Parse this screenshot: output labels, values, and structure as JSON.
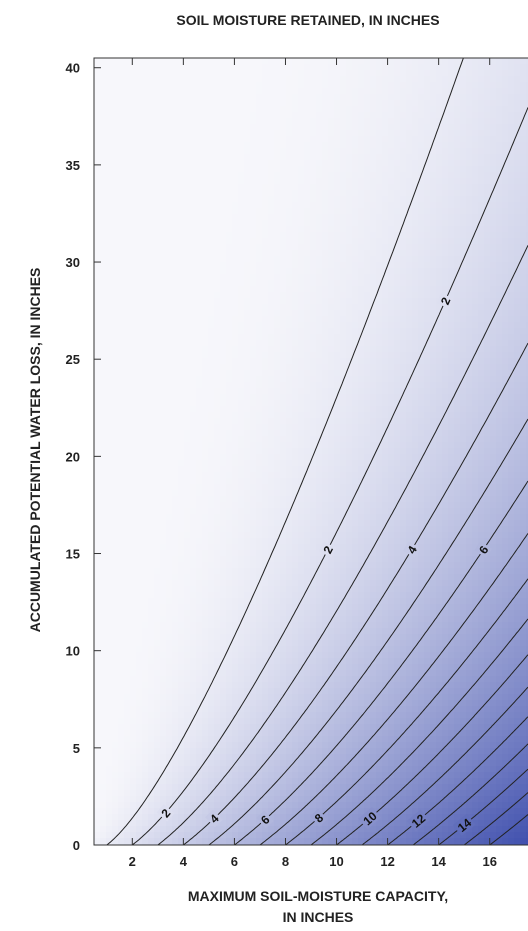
{
  "chart_data": {
    "type": "contour",
    "title": "SOIL MOISTURE RETAINED, IN INCHES",
    "xlabel_lines": [
      "MAXIMUM SOIL-MOISTURE CAPACITY,",
      "IN INCHES"
    ],
    "ylabel": "ACCUMULATED POTENTIAL WATER LOSS, IN INCHES",
    "xlim": [
      0.5,
      17.5
    ],
    "ylim": [
      0,
      40.5
    ],
    "x_ticks": [
      2,
      4,
      6,
      8,
      10,
      12,
      14,
      16
    ],
    "y_ticks": [
      0,
      5,
      10,
      15,
      20,
      25,
      30,
      35,
      40
    ],
    "model": "retained = capacity * exp(-loss / capacity)",
    "contour_levels": [
      1,
      2,
      3,
      4,
      5,
      6,
      7,
      8,
      9,
      10,
      11,
      12,
      13,
      14,
      15,
      16
    ],
    "labeled_levels": [
      {
        "level": 2,
        "text": "2",
        "at_x": 3.3
      },
      {
        "level": 4,
        "text": "4",
        "at_x": 5.2
      },
      {
        "level": 6,
        "text": "6",
        "at_x": 7.2
      },
      {
        "level": 8,
        "text": "8",
        "at_x": 9.3
      },
      {
        "level": 10,
        "text": "10",
        "at_x": 11.3
      },
      {
        "level": 12,
        "text": "12",
        "at_x": 13.2
      },
      {
        "level": 14,
        "text": "14",
        "at_x": 15.0
      },
      {
        "level": 2,
        "text": "2",
        "at_y": 15.2
      },
      {
        "level": 4,
        "text": "4",
        "at_y": 15.2
      },
      {
        "level": 6,
        "text": "6",
        "at_y": 15.2
      },
      {
        "level": 2,
        "text": "2",
        "at_y": 28.0
      }
    ],
    "shading": {
      "low_color": "#f7f7fb",
      "high_color": "#3f4fad",
      "max_value": 17.5
    },
    "grid": false
  }
}
